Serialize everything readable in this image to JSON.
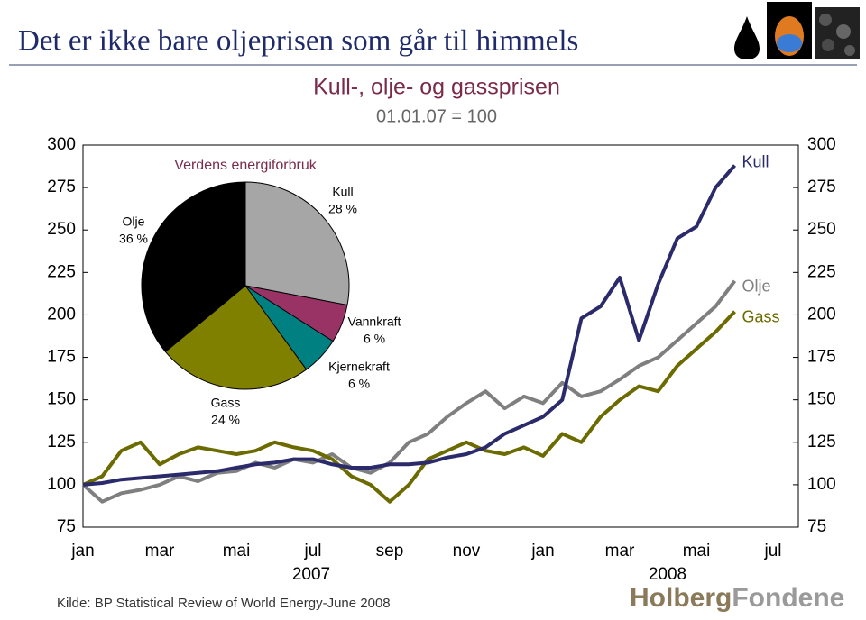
{
  "header": {
    "title": "Det er ikke bare oljeprisen som går til himmels"
  },
  "chart_data": [
    {
      "type": "line",
      "title": "Kull-, olje- og gassprisen",
      "subtitle": "01.01.07 = 100",
      "categories": [
        "jan",
        null,
        null,
        null,
        "mar",
        null,
        null,
        null,
        "mai",
        null,
        null,
        null,
        "jul",
        null,
        null,
        null,
        "sep",
        null,
        null,
        null,
        "nov",
        null,
        null,
        null,
        "jan",
        null,
        null,
        null,
        "mar",
        null,
        null,
        null,
        "mai",
        null,
        null,
        null,
        "jul"
      ],
      "year_labels": [
        "2007",
        "2008"
      ],
      "ylim": [
        75,
        300
      ],
      "yticks": [
        75,
        100,
        125,
        150,
        175,
        200,
        225,
        250,
        275,
        300
      ],
      "series": [
        {
          "name": "Kull",
          "color": "#2b2a6b",
          "values": [
            100,
            101,
            103,
            104,
            105,
            106,
            107,
            108,
            110,
            112,
            113,
            115,
            115,
            112,
            110,
            110,
            112,
            112,
            113,
            116,
            118,
            122,
            130,
            135,
            140,
            150,
            198,
            205,
            222,
            185,
            218,
            245,
            252,
            275,
            288,
            null,
            null
          ]
        },
        {
          "name": "Olje",
          "color": "#7f7f7f",
          "values": [
            100,
            90,
            95,
            97,
            100,
            105,
            102,
            107,
            108,
            113,
            110,
            115,
            113,
            118,
            110,
            107,
            113,
            125,
            130,
            140,
            148,
            155,
            145,
            152,
            148,
            160,
            152,
            155,
            162,
            170,
            175,
            185,
            195,
            205,
            220,
            null,
            null
          ]
        },
        {
          "name": "Gass",
          "color": "#6b6b00",
          "values": [
            100,
            105,
            120,
            125,
            112,
            118,
            122,
            120,
            118,
            120,
            125,
            122,
            120,
            115,
            105,
            100,
            90,
            100,
            115,
            120,
            125,
            120,
            118,
            122,
            117,
            130,
            125,
            140,
            150,
            158,
            155,
            170,
            180,
            190,
            202,
            null,
            null
          ]
        }
      ]
    },
    {
      "type": "pie",
      "title": "Verdens energiforbruk",
      "categories": [
        "Kull",
        "Vannkraft",
        "Kjernekraft",
        "Gass",
        "Olje"
      ],
      "values": [
        28,
        6,
        6,
        24,
        36
      ],
      "value_labels": [
        "28 %",
        "6 %",
        "6 %",
        "24 %",
        "36 %"
      ],
      "colors": [
        "#a6a6a6",
        "#993366",
        "#008080",
        "#808000",
        "#000000"
      ]
    }
  ],
  "footer": {
    "source": "Kilde: BP Statistical Review of World Energy-June 2008",
    "logo": [
      "Holberg",
      "Fondene"
    ]
  }
}
